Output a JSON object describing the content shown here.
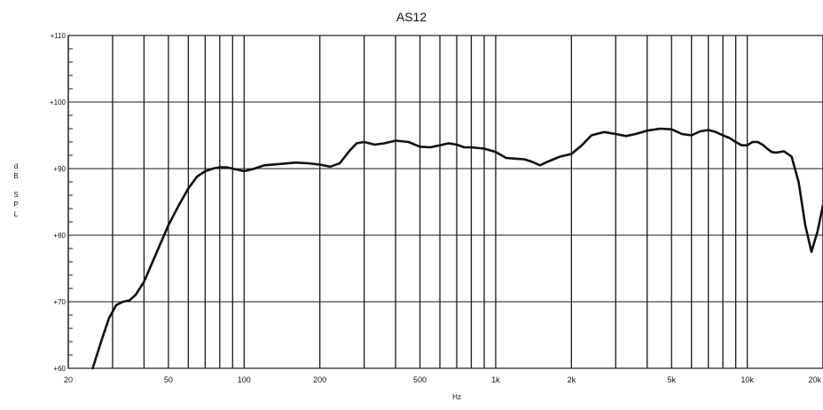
{
  "chart_data": {
    "type": "line",
    "title": "AS12",
    "xlabel": "Hz",
    "ylabel": "dB SPL",
    "x_scale": "log",
    "xlim": [
      20,
      20000
    ],
    "ylim": [
      60,
      110
    ],
    "grid": true,
    "legend": "none",
    "y_ticks": [
      {
        "value": 60,
        "label": "+60"
      },
      {
        "value": 70,
        "label": "+70"
      },
      {
        "value": 80,
        "label": "+80"
      },
      {
        "value": 90,
        "label": "+90"
      },
      {
        "value": 100,
        "label": "+100"
      },
      {
        "value": 110,
        "label": "+110"
      }
    ],
    "x_ticks": [
      {
        "value": 20,
        "label": "20"
      },
      {
        "value": 50,
        "label": "50"
      },
      {
        "value": 100,
        "label": "100"
      },
      {
        "value": 200,
        "label": "200"
      },
      {
        "value": 500,
        "label": "500"
      },
      {
        "value": 1000,
        "label": "1k"
      },
      {
        "value": 2000,
        "label": "2k"
      },
      {
        "value": 5000,
        "label": "5k"
      },
      {
        "value": 10000,
        "label": "10k"
      },
      {
        "value": 20000,
        "label": "20k"
      }
    ],
    "x_gridlines": [
      20,
      30,
      40,
      50,
      60,
      70,
      80,
      90,
      100,
      200,
      300,
      400,
      500,
      600,
      700,
      800,
      900,
      1000,
      2000,
      3000,
      4000,
      5000,
      6000,
      7000,
      8000,
      9000,
      10000,
      20000
    ],
    "series": [
      {
        "color": "#111111",
        "x": [
          25,
          27,
          29,
          31,
          33,
          35,
          37,
          40,
          45,
          50,
          55,
          60,
          65,
          70,
          75,
          80,
          85,
          90,
          95,
          100,
          110,
          120,
          140,
          160,
          180,
          200,
          220,
          240,
          260,
          280,
          300,
          330,
          360,
          400,
          450,
          500,
          550,
          600,
          650,
          700,
          750,
          800,
          900,
          1000,
          1100,
          1200,
          1300,
          1400,
          1500,
          1600,
          1800,
          2000,
          2200,
          2400,
          2700,
          3000,
          3300,
          3600,
          4000,
          4500,
          5000,
          5500,
          6000,
          6500,
          7000,
          7500,
          8000,
          8500,
          9000,
          9500,
          10000,
          10500,
          11000,
          11500,
          12000,
          12500,
          13000,
          14000,
          15000,
          16000,
          17000,
          18000,
          19000,
          20000
        ],
        "y": [
          60,
          64,
          67.5,
          69.5,
          70,
          70.2,
          71,
          73,
          77.5,
          81.5,
          84.5,
          87,
          88.8,
          89.6,
          90,
          90.2,
          90.2,
          90,
          89.8,
          89.6,
          90,
          90.5,
          90.7,
          90.9,
          90.8,
          90.6,
          90.3,
          90.8,
          92.5,
          93.8,
          94,
          93.6,
          93.8,
          94.2,
          94,
          93.3,
          93.2,
          93.5,
          93.8,
          93.6,
          93.2,
          93.2,
          93,
          92.5,
          91.6,
          91.5,
          91.4,
          91,
          90.5,
          91,
          91.8,
          92.2,
          93.5,
          95,
          95.5,
          95.2,
          94.9,
          95.2,
          95.7,
          96,
          95.9,
          95.2,
          95,
          95.6,
          95.8,
          95.5,
          95,
          94.6,
          94,
          93.5,
          93.5,
          94,
          94,
          93.6,
          93,
          92.5,
          92.4,
          92.6,
          91.8,
          88,
          81.5,
          77.5,
          80.5,
          84.5
        ]
      }
    ]
  }
}
